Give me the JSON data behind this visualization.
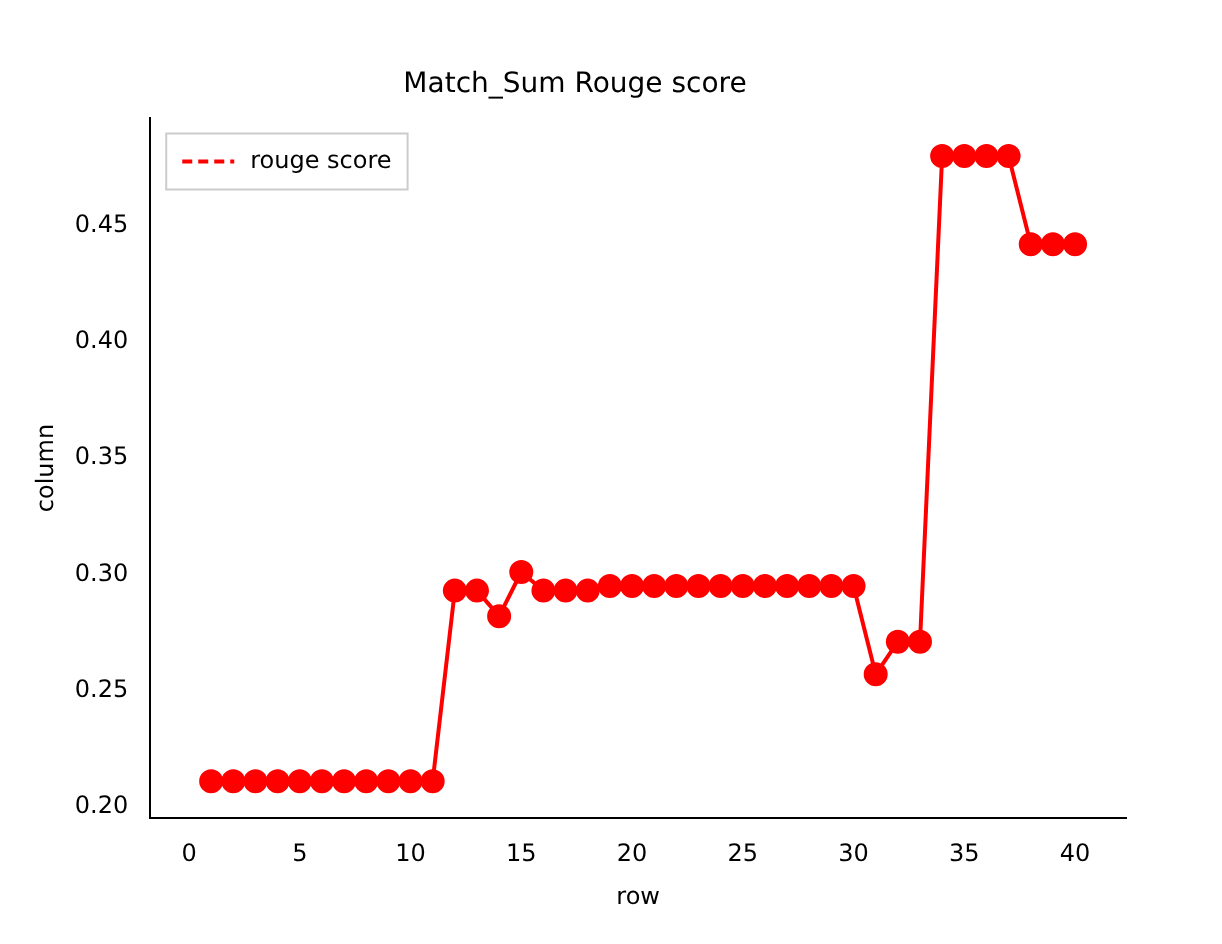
{
  "chart_data": {
    "type": "line",
    "title": "Match_Sum Rouge score",
    "xlabel": "row",
    "ylabel": "column",
    "x": [
      1,
      2,
      3,
      4,
      5,
      6,
      7,
      8,
      9,
      10,
      11,
      12,
      13,
      14,
      15,
      16,
      17,
      18,
      19,
      20,
      21,
      22,
      23,
      24,
      25,
      26,
      27,
      28,
      29,
      30,
      31,
      32,
      33,
      34,
      35,
      36,
      37,
      38,
      39,
      40
    ],
    "series": [
      {
        "name": "rouge score",
        "color": "#ff0000",
        "values": [
          0.211,
          0.211,
          0.211,
          0.211,
          0.211,
          0.211,
          0.211,
          0.211,
          0.211,
          0.211,
          0.211,
          0.293,
          0.293,
          0.282,
          0.301,
          0.293,
          0.293,
          0.293,
          0.295,
          0.295,
          0.295,
          0.295,
          0.295,
          0.295,
          0.295,
          0.295,
          0.295,
          0.295,
          0.295,
          0.295,
          0.257,
          0.271,
          0.271,
          0.48,
          0.48,
          0.48,
          0.48,
          0.442,
          0.442,
          0.442
        ]
      }
    ],
    "xlim": [
      -1.75,
      42.3
    ],
    "xticks": [
      0,
      5,
      10,
      15,
      20,
      25,
      30,
      35,
      40
    ],
    "ylim": [
      0.195,
      0.4965
    ],
    "yticks": [
      {
        "value": 0.2,
        "label": "0.20"
      },
      {
        "value": 0.25,
        "label": "0.25"
      },
      {
        "value": 0.3,
        "label": "0.30"
      },
      {
        "value": 0.35,
        "label": "0.35"
      },
      {
        "value": 0.4,
        "label": "0.40"
      },
      {
        "value": 0.45,
        "label": "0.45"
      }
    ],
    "legend": "top left",
    "marker": "circle",
    "line_style": "solid",
    "grid": false
  }
}
